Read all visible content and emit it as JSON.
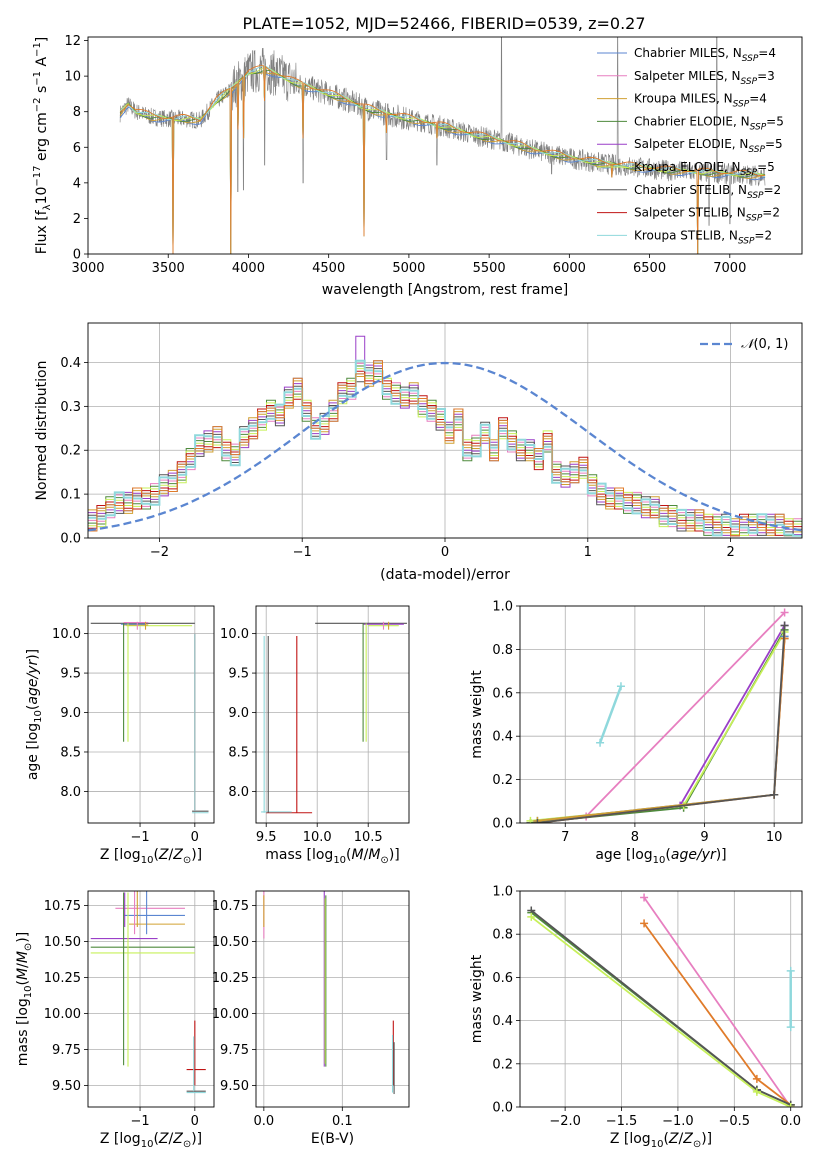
{
  "title": "PLATE=1052, MJD=52466, FIBERID=0539, z=0.27",
  "colors": {
    "Chabrier MILES": "#5b86d1",
    "Salpeter MILES": "#e77fc0",
    "Kroupa MILES": "#d1a032",
    "Chabrier ELODIE": "#4e8a3c",
    "Salpeter ELODIE": "#9a3fc8",
    "Kroupa ELODIE": "#c7f05a",
    "Chabrier STELIB": "#555555",
    "Salpeter STELIB": "#c01414",
    "Kroupa STELIB": "#8fd8dc",
    "data": "#7f7f7f",
    "orange": "#e07b2a",
    "normal": "#5b86d1"
  },
  "legend": [
    {
      "model": "Chabrier MILES",
      "prefix": "Chabrier MILES, N",
      "sub": "SSP",
      "suffix": "=4"
    },
    {
      "model": "Salpeter MILES",
      "prefix": "Salpeter MILES, N",
      "sub": "SSP",
      "suffix": "=3"
    },
    {
      "model": "Kroupa MILES",
      "prefix": "Kroupa MILES, N",
      "sub": "SSP",
      "suffix": "=4"
    },
    {
      "model": "Chabrier ELODIE",
      "prefix": "Chabrier ELODIE, N",
      "sub": "SSP",
      "suffix": "=5"
    },
    {
      "model": "Salpeter ELODIE",
      "prefix": "Salpeter ELODIE, N",
      "sub": "SSP",
      "suffix": "=5"
    },
    {
      "model": "Kroupa ELODIE",
      "prefix": "Kroupa ELODIE, N",
      "sub": "SSP",
      "suffix": "=5"
    },
    {
      "model": "Chabrier STELIB",
      "prefix": "Chabrier STELIB, N",
      "sub": "SSP",
      "suffix": "=2"
    },
    {
      "model": "Salpeter STELIB",
      "prefix": "Salpeter STELIB, N",
      "sub": "SSP",
      "suffix": "=2"
    },
    {
      "model": "Kroupa STELIB",
      "prefix": "Kroupa STELIB, N",
      "sub": "SSP",
      "suffix": "=2"
    }
  ],
  "chart_data": [
    {
      "id": "spectrum",
      "type": "line",
      "xlabel": "wavelength [Angstrom, rest frame]",
      "ylabel": "Flux [f_λ 10^-17 erg cm^-2 s^-1 A^-1]",
      "xlim": [
        3000,
        7450
      ],
      "ylim": [
        0,
        12.2
      ],
      "xticks": [
        3000,
        3500,
        4000,
        4500,
        5000,
        5500,
        6000,
        6500,
        7000
      ],
      "yticks": [
        0,
        2,
        4,
        6,
        8,
        10,
        12
      ],
      "grid": false,
      "legend_position": "right",
      "continuum": [
        [
          3200,
          7.9
        ],
        [
          3250,
          8.4
        ],
        [
          3300,
          8.0
        ],
        [
          3400,
          7.7
        ],
        [
          3500,
          7.6
        ],
        [
          3600,
          7.6
        ],
        [
          3700,
          7.5
        ],
        [
          3800,
          8.6
        ],
        [
          3900,
          9.3
        ],
        [
          4000,
          10.2
        ],
        [
          4100,
          10.4
        ],
        [
          4200,
          10.0
        ],
        [
          4300,
          9.6
        ],
        [
          4400,
          9.3
        ],
        [
          4500,
          9.0
        ],
        [
          4600,
          8.7
        ],
        [
          4700,
          8.3
        ],
        [
          4800,
          8.0
        ],
        [
          4900,
          7.8
        ],
        [
          5000,
          7.6
        ],
        [
          5200,
          7.2
        ],
        [
          5400,
          6.7
        ],
        [
          5600,
          6.3
        ],
        [
          5800,
          5.8
        ],
        [
          6000,
          5.4
        ],
        [
          6200,
          5.1
        ],
        [
          6400,
          4.9
        ],
        [
          6600,
          4.7
        ],
        [
          6800,
          4.6
        ],
        [
          7000,
          4.5
        ],
        [
          7200,
          4.4
        ]
      ],
      "model_dips": [
        [
          3530,
          0.0
        ],
        [
          3890,
          0.0
        ],
        [
          3934,
          7.0
        ],
        [
          3968,
          6.5
        ],
        [
          4101,
          8.6
        ],
        [
          4340,
          6.5
        ],
        [
          4720,
          1.0
        ],
        [
          4861,
          6.8
        ],
        [
          5175,
          6.5
        ],
        [
          6263,
          4.3
        ],
        [
          6800,
          0.0
        ]
      ],
      "data_features": [
        [
          3890,
          0
        ],
        [
          3934,
          3.5
        ],
        [
          3968,
          3.6
        ],
        [
          4101,
          5.0
        ],
        [
          4340,
          4.0
        ],
        [
          4861,
          5.3
        ],
        [
          5175,
          5.0
        ],
        [
          5577,
          12.2
        ],
        [
          5890,
          4.5
        ],
        [
          6300,
          12.2
        ],
        [
          6800,
          0.0
        ],
        [
          6870,
          1.6
        ],
        [
          6920,
          12.2
        ],
        [
          7000,
          1.7
        ]
      ]
    },
    {
      "id": "residuals",
      "type": "step",
      "xlabel": "(data-model)/error",
      "ylabel": "Normed distribution",
      "xlim": [
        -2.5,
        2.5
      ],
      "ylim": [
        0,
        0.49
      ],
      "xticks": [
        -2,
        -1,
        0,
        1,
        2
      ],
      "yticks": [
        0.0,
        0.1,
        0.2,
        0.3,
        0.4
      ],
      "grid": true,
      "legend_position": "top-right",
      "normal_label": "N(0,1)",
      "bin_width": 0.1,
      "bin_start": -2.5,
      "base_hist": [
        0.04,
        0.05,
        0.07,
        0.08,
        0.08,
        0.09,
        0.09,
        0.1,
        0.12,
        0.13,
        0.15,
        0.18,
        0.21,
        0.22,
        0.23,
        0.2,
        0.19,
        0.23,
        0.25,
        0.27,
        0.29,
        0.28,
        0.32,
        0.34,
        0.29,
        0.25,
        0.26,
        0.29,
        0.33,
        0.34,
        0.38,
        0.37,
        0.38,
        0.34,
        0.33,
        0.32,
        0.33,
        0.3,
        0.29,
        0.27,
        0.24,
        0.27,
        0.2,
        0.21,
        0.24,
        0.2,
        0.25,
        0.22,
        0.2,
        0.2,
        0.18,
        0.22,
        0.15,
        0.14,
        0.15,
        0.16,
        0.12,
        0.1,
        0.09,
        0.09,
        0.08,
        0.08,
        0.07,
        0.07,
        0.05,
        0.05,
        0.04,
        0.04,
        0.04,
        0.03,
        0.03,
        0.03,
        0.02,
        0.03,
        0.03,
        0.03,
        0.03,
        0.03,
        0.02,
        0.02
      ]
    },
    {
      "id": "age_vs_Z",
      "type": "errorbar",
      "xlabel": "Z [log10(Z/Z☉)]",
      "ylabel": "age [log10(age/yr)]",
      "xlim": [
        -1.95,
        0.35
      ],
      "ylim": [
        7.6,
        10.35
      ],
      "xticks": [
        -1,
        0
      ],
      "yticks": [
        8.0,
        8.5,
        9.0,
        9.5,
        10.0
      ],
      "grid": true,
      "horizontal": [
        {
          "y": 10.13,
          "x0": -1.9,
          "x1": 0.0,
          "model": "Chabrier STELIB"
        },
        {
          "y": 10.1,
          "x0": -1.25,
          "x1": -0.05,
          "model": "Kroupa ELODIE"
        },
        {
          "y": 10.14,
          "x0": -1.3,
          "x1": -0.85,
          "model": "Salpeter MILES"
        },
        {
          "y": 10.11,
          "x0": -1.3,
          "x1": -0.85,
          "model": "Kroupa MILES"
        },
        {
          "y": 10.12,
          "x0": -1.35,
          "x1": -0.9,
          "model": "Chabrier MILES"
        },
        {
          "y": 7.73,
          "x0": -0.05,
          "x1": 0.25,
          "model": "Kroupa STELIB"
        },
        {
          "y": 7.75,
          "x0": -0.05,
          "x1": 0.25,
          "model": "Chabrier STELIB"
        }
      ],
      "vertical": [
        {
          "x": -1.3,
          "y0": 8.63,
          "y1": 10.13,
          "model": "Chabrier ELODIE"
        },
        {
          "x": -1.22,
          "y0": 8.63,
          "y1": 10.13,
          "model": "Kroupa ELODIE"
        },
        {
          "x": 0.0,
          "y0": 7.75,
          "y1": 10.0,
          "model": "Salpeter STELIB"
        },
        {
          "x": 0.0,
          "y0": 7.75,
          "y1": 10.0,
          "model": "Kroupa STELIB"
        },
        {
          "x": -1.05,
          "y0": 10.05,
          "y1": 10.15,
          "model": "Salpeter MILES"
        },
        {
          "x": -0.9,
          "y0": 10.05,
          "y1": 10.15,
          "model": "Kroupa MILES"
        }
      ]
    },
    {
      "id": "age_vs_mass",
      "type": "errorbar",
      "xlabel": "mass [log10(M/M☉)]",
      "ylabel": "",
      "xlim": [
        9.4,
        10.9
      ],
      "ylim": [
        7.6,
        10.35
      ],
      "xticks": [
        9.5,
        10.0,
        10.5
      ],
      "yticks": [
        8.0,
        8.5,
        9.0,
        9.5,
        10.0
      ],
      "grid": true,
      "horizontal": [
        {
          "y": 10.13,
          "x0": 9.98,
          "x1": 10.88,
          "model": "Chabrier STELIB"
        },
        {
          "y": 10.12,
          "x0": 10.45,
          "x1": 10.85,
          "model": "Salpeter ELODIE"
        },
        {
          "y": 10.1,
          "x0": 10.5,
          "x1": 10.8,
          "model": "Kroupa ELODIE"
        },
        {
          "y": 7.73,
          "x0": 9.5,
          "x1": 9.95,
          "model": "Salpeter STELIB"
        },
        {
          "y": 7.74,
          "x0": 9.45,
          "x1": 9.75,
          "model": "Kroupa STELIB"
        }
      ],
      "vertical": [
        {
          "x": 9.48,
          "y0": 7.73,
          "y1": 9.97,
          "model": "Kroupa STELIB"
        },
        {
          "x": 9.52,
          "y0": 7.73,
          "y1": 9.97,
          "model": "Chabrier STELIB"
        },
        {
          "x": 9.8,
          "y0": 7.73,
          "y1": 9.97,
          "model": "Salpeter STELIB"
        },
        {
          "x": 10.45,
          "y0": 8.63,
          "y1": 10.13,
          "model": "Chabrier ELODIE"
        },
        {
          "x": 10.48,
          "y0": 8.63,
          "y1": 10.13,
          "model": "Kroupa ELODIE"
        },
        {
          "x": 10.65,
          "y0": 10.05,
          "y1": 10.15,
          "model": "Salpeter MILES"
        },
        {
          "x": 10.7,
          "y0": 10.05,
          "y1": 10.15,
          "model": "Kroupa MILES"
        }
      ]
    },
    {
      "id": "weight_vs_age",
      "type": "line",
      "xlabel": "age [log10(age/yr)]",
      "ylabel": "mass weight",
      "xlim": [
        6.35,
        10.4
      ],
      "ylim": [
        0,
        1.0
      ],
      "xticks": [
        7,
        8,
        9,
        10
      ],
      "yticks": [
        0.0,
        0.2,
        0.4,
        0.6,
        0.8,
        1.0
      ],
      "grid": true,
      "series": [
        {
          "model": "Salpeter MILES",
          "points": [
            [
              6.5,
              0.0
            ],
            [
              7.3,
              0.03
            ],
            [
              10.15,
              0.97
            ]
          ]
        },
        {
          "model": "Salpeter ELODIE",
          "points": [
            [
              6.5,
              0.0
            ],
            [
              8.65,
              0.08
            ],
            [
              10.15,
              0.91
            ]
          ]
        },
        {
          "model": "Chabrier ELODIE",
          "points": [
            [
              6.5,
              0.0
            ],
            [
              8.7,
              0.07
            ],
            [
              10.15,
              0.89
            ]
          ]
        },
        {
          "model": "Kroupa ELODIE",
          "points": [
            [
              6.5,
              0.01
            ],
            [
              8.7,
              0.08
            ],
            [
              10.15,
              0.88
            ]
          ]
        },
        {
          "model": "Chabrier MILES",
          "points": [
            [
              6.6,
              0.01
            ],
            [
              10.0,
              0.13
            ],
            [
              10.15,
              0.86
            ]
          ]
        },
        {
          "model": "Kroupa MILES",
          "points": [
            [
              6.6,
              0.01
            ],
            [
              10.0,
              0.13
            ],
            [
              10.15,
              0.85
            ]
          ]
        },
        {
          "model": "orange",
          "points": [
            [
              6.6,
              0.0
            ],
            [
              10.0,
              0.13
            ],
            [
              10.15,
              0.85
            ]
          ]
        },
        {
          "model": "Chabrier STELIB",
          "points": [
            [
              6.6,
              0.0
            ],
            [
              10.0,
              0.13
            ],
            [
              10.15,
              0.91
            ]
          ]
        },
        {
          "model": "Kroupa STELIB",
          "points": [
            [
              7.5,
              0.37
            ],
            [
              7.8,
              0.63
            ]
          ]
        }
      ]
    },
    {
      "id": "mass_vs_Z",
      "type": "errorbar",
      "xlabel": "Z [log10(Z/Z☉)]",
      "ylabel": "mass [log10(M/M☉)]",
      "xlim": [
        -1.95,
        0.35
      ],
      "ylim": [
        9.35,
        10.85
      ],
      "xticks": [
        -1,
        0
      ],
      "yticks": [
        9.5,
        9.75,
        10.0,
        10.25,
        10.5,
        10.75
      ],
      "grid": true,
      "horizontal": [
        {
          "y": 10.73,
          "x0": -1.45,
          "x1": -0.18,
          "model": "Salpeter MILES"
        },
        {
          "y": 10.68,
          "x0": -1.3,
          "x1": -0.18,
          "model": "Chabrier MILES"
        },
        {
          "y": 10.62,
          "x0": -1.2,
          "x1": -0.18,
          "model": "Kroupa MILES"
        },
        {
          "y": 10.52,
          "x0": -1.9,
          "x1": -0.68,
          "model": "Salpeter ELODIE"
        },
        {
          "y": 10.46,
          "x0": -1.9,
          "x1": 0.0,
          "model": "Chabrier ELODIE"
        },
        {
          "y": 10.42,
          "x0": -1.9,
          "x1": 0.0,
          "model": "Kroupa ELODIE"
        },
        {
          "y": 9.61,
          "x0": -0.15,
          "x1": 0.2,
          "model": "Salpeter STELIB"
        },
        {
          "y": 9.45,
          "x0": -0.15,
          "x1": 0.2,
          "model": "Kroupa STELIB"
        },
        {
          "y": 9.46,
          "x0": -0.15,
          "x1": 0.2,
          "model": "Chabrier STELIB"
        }
      ],
      "vertical": [
        {
          "x": -1.3,
          "y0": 9.64,
          "y1": 10.84,
          "model": "Chabrier ELODIE"
        },
        {
          "x": -1.22,
          "y0": 9.63,
          "y1": 10.84,
          "model": "Kroupa ELODIE"
        },
        {
          "x": -1.28,
          "y0": 10.6,
          "y1": 10.84,
          "model": "Salpeter ELODIE"
        },
        {
          "x": -1.1,
          "y0": 10.55,
          "y1": 10.87,
          "model": "Salpeter MILES"
        },
        {
          "x": -1.05,
          "y0": 10.6,
          "y1": 10.85,
          "model": "Kroupa MILES"
        },
        {
          "x": -0.88,
          "y0": 10.55,
          "y1": 10.85,
          "model": "Chabrier MILES"
        },
        {
          "x": 0.0,
          "y0": 9.5,
          "y1": 9.95,
          "model": "Salpeter STELIB"
        },
        {
          "x": -0.02,
          "y0": 9.46,
          "y1": 9.84,
          "model": "Kroupa STELIB"
        }
      ]
    },
    {
      "id": "mass_vs_EBV",
      "type": "errorbar",
      "xlabel": "E(B-V)",
      "ylabel": "",
      "xlim": [
        -0.01,
        0.185
      ],
      "ylim": [
        9.35,
        10.85
      ],
      "xticks": [
        0.0,
        0.1
      ],
      "yticks": [
        9.5,
        9.75,
        10.0,
        10.25,
        10.5,
        10.75
      ],
      "grid": true,
      "horizontal": [],
      "vertical": [
        {
          "x": 0.0,
          "y0": 10.52,
          "y1": 10.88,
          "model": "Salpeter MILES"
        },
        {
          "x": 0.0,
          "y0": 10.6,
          "y1": 10.82,
          "model": "Kroupa MILES"
        },
        {
          "x": 0.077,
          "y0": 9.63,
          "y1": 10.87,
          "model": "Salpeter ELODIE"
        },
        {
          "x": 0.079,
          "y0": 9.63,
          "y1": 10.82,
          "model": "Chabrier ELODIE"
        },
        {
          "x": 0.078,
          "y0": 9.65,
          "y1": 10.8,
          "model": "Kroupa ELODIE"
        },
        {
          "x": 0.165,
          "y0": 9.5,
          "y1": 9.95,
          "model": "Salpeter STELIB"
        },
        {
          "x": 0.164,
          "y0": 9.45,
          "y1": 9.85,
          "model": "Kroupa STELIB"
        },
        {
          "x": 0.166,
          "y0": 9.44,
          "y1": 9.8,
          "model": "Chabrier STELIB"
        }
      ]
    },
    {
      "id": "weight_vs_Z",
      "type": "line",
      "xlabel": "Z [log10(Z/Z☉)]",
      "ylabel": "mass weight",
      "xlim": [
        -2.4,
        0.1
      ],
      "ylim": [
        0,
        1.0
      ],
      "xticks": [
        -2.0,
        -1.5,
        -1.0,
        -0.5,
        0.0
      ],
      "yticks": [
        0.0,
        0.2,
        0.4,
        0.6,
        0.8,
        1.0
      ],
      "grid": true,
      "series": [
        {
          "model": "Salpeter MILES",
          "points": [
            [
              -1.3,
              0.97
            ],
            [
              0.0,
              0.0
            ]
          ]
        },
        {
          "model": "orange",
          "points": [
            [
              -1.3,
              0.85
            ],
            [
              -0.3,
              0.13
            ],
            [
              0.0,
              0.01
            ]
          ]
        },
        {
          "model": "Chabrier ELODIE",
          "points": [
            [
              -2.3,
              0.9
            ],
            [
              -0.3,
              0.08
            ],
            [
              0.0,
              0.01
            ]
          ]
        },
        {
          "model": "Chabrier STELIB",
          "points": [
            [
              -2.3,
              0.91
            ],
            [
              -0.3,
              0.08
            ],
            [
              0.0,
              0.01
            ]
          ]
        },
        {
          "model": "Kroupa ELODIE",
          "points": [
            [
              -2.3,
              0.88
            ],
            [
              -0.3,
              0.07
            ],
            [
              0.0,
              0.0
            ]
          ]
        },
        {
          "model": "Kroupa STELIB",
          "points": [
            [
              0.0,
              0.37
            ],
            [
              0.0,
              0.63
            ]
          ]
        }
      ]
    }
  ]
}
